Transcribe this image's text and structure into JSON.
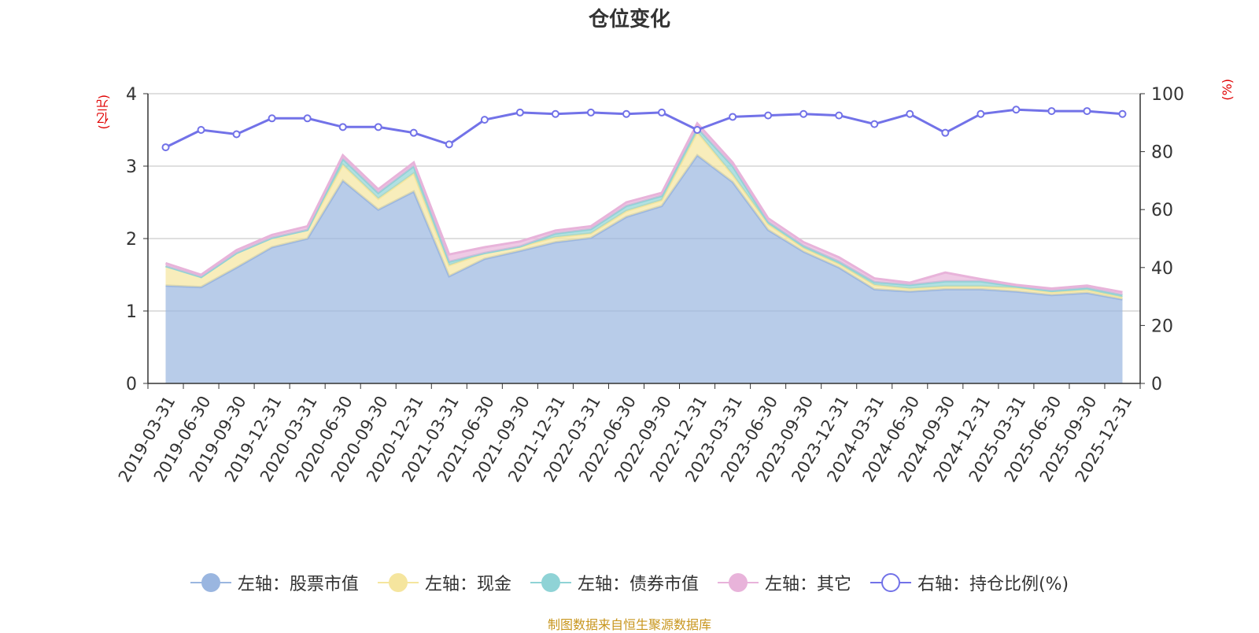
{
  "title": "仓位变化",
  "source": "制图数据来自恒生聚源数据库",
  "chart_data": {
    "type": "area",
    "title": "仓位变化",
    "left_axis_unit": "(亿元)",
    "right_axis_unit": "(%)",
    "ylim_left": [
      0,
      4
    ],
    "ylim_right": [
      0,
      100
    ],
    "yticks_left": [
      0,
      1,
      2,
      3,
      4
    ],
    "yticks_right": [
      0,
      20,
      40,
      60,
      80,
      100
    ],
    "grid": true,
    "legend_position": "bottom",
    "categories": [
      "2019-03-31",
      "2019-06-30",
      "2019-09-30",
      "2019-12-31",
      "2020-03-31",
      "2020-06-30",
      "2020-09-30",
      "2020-12-31",
      "2021-03-31",
      "2021-06-30",
      "2021-09-30",
      "2021-12-31",
      "2022-03-31",
      "2022-06-30",
      "2022-09-30",
      "2022-12-31",
      "2023-03-31",
      "2023-06-30",
      "2023-09-30",
      "2023-12-31",
      "2024-03-31",
      "2024-06-30",
      "2024-09-30",
      "2024-12-31",
      "2025-03-31",
      "2025-06-30",
      "2025-09-30",
      "2025-12-31"
    ],
    "series": [
      {
        "name": "左轴：股票市值",
        "axis": "left",
        "stack": true,
        "color": "#9ab6e0",
        "values": [
          1.35,
          1.33,
          1.6,
          1.88,
          2.0,
          2.8,
          2.4,
          2.65,
          1.48,
          1.72,
          1.83,
          1.95,
          2.01,
          2.3,
          2.45,
          3.15,
          2.78,
          2.12,
          1.82,
          1.6,
          1.3,
          1.27,
          1.3,
          1.3,
          1.27,
          1.22,
          1.25,
          1.16
        ]
      },
      {
        "name": "左轴：现金",
        "axis": "left",
        "stack": true,
        "color": "#f5e59e",
        "values": [
          0.27,
          0.14,
          0.2,
          0.13,
          0.12,
          0.22,
          0.15,
          0.25,
          0.15,
          0.08,
          0.06,
          0.07,
          0.06,
          0.08,
          0.08,
          0.32,
          0.1,
          0.08,
          0.05,
          0.05,
          0.06,
          0.04,
          0.04,
          0.04,
          0.05,
          0.04,
          0.04,
          0.03
        ]
      },
      {
        "name": "左轴：债券市值",
        "axis": "left",
        "stack": true,
        "color": "#8fd3d6",
        "values": [
          0,
          0,
          0,
          0,
          0,
          0.08,
          0.08,
          0.1,
          0.05,
          0,
          0,
          0.05,
          0.06,
          0.07,
          0.06,
          0.06,
          0.12,
          0.03,
          0.03,
          0.03,
          0.04,
          0.05,
          0.07,
          0.07,
          0.02,
          0.02,
          0.03,
          0.03
        ]
      },
      {
        "name": "左轴：其它",
        "axis": "left",
        "stack": true,
        "color": "#e8b3da",
        "values": [
          0.04,
          0.03,
          0.04,
          0.04,
          0.05,
          0.05,
          0.05,
          0.05,
          0.1,
          0.08,
          0.07,
          0.04,
          0.04,
          0.05,
          0.04,
          0.06,
          0.05,
          0.05,
          0.05,
          0.06,
          0.05,
          0.03,
          0.12,
          0.03,
          0.02,
          0.03,
          0.03,
          0.04
        ]
      },
      {
        "name": "右轴：持仓比例(%)",
        "axis": "right",
        "stack": false,
        "color": "#7272e8",
        "values": [
          81.5,
          87.5,
          86,
          91.5,
          91.5,
          88.5,
          88.5,
          86.5,
          82.5,
          91,
          93.5,
          93,
          93.5,
          93,
          93.5,
          87.5,
          92,
          92.5,
          93,
          92.5,
          89.5,
          93,
          86.5,
          93,
          94.5,
          94,
          94,
          93
        ]
      }
    ]
  }
}
